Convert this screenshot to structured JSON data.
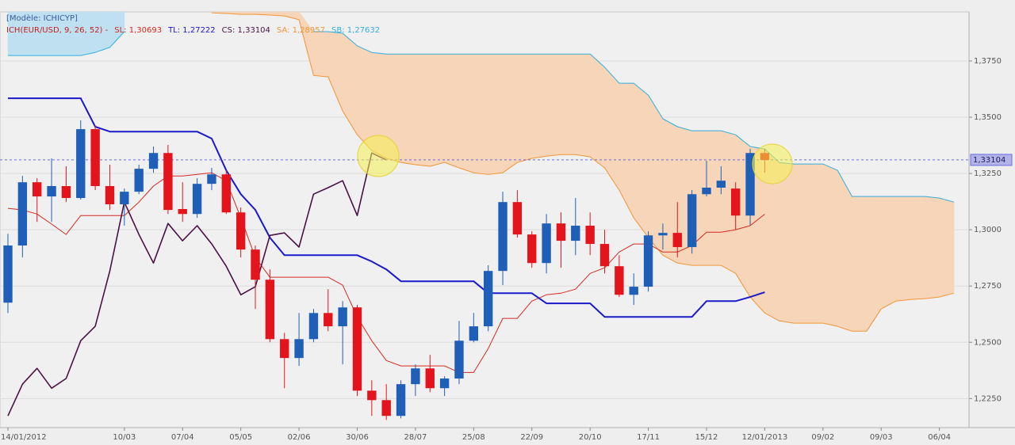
{
  "chart_data": {
    "type": "candlestick",
    "title": "[Modèle: ICHICYP]",
    "subtitle": "ICH(EUR/USD, 9, 26, 52)  -",
    "up_color": "#1f5fb8",
    "down_color": "#e3141c",
    "categories": [
      "14/01/2012",
      null,
      null,
      null,
      null,
      null,
      null,
      null,
      "10/03",
      null,
      null,
      null,
      "07/04",
      null,
      null,
      null,
      "05/05",
      null,
      null,
      null,
      "02/06",
      null,
      null,
      null,
      "30/06",
      null,
      null,
      null,
      "28/07",
      null,
      null,
      null,
      "25/08",
      null,
      null,
      null,
      "22/09",
      null,
      null,
      null,
      "20/10",
      null,
      null,
      null,
      "17/11",
      null,
      null,
      null,
      "15/12",
      null,
      null,
      null,
      "12/01/2013",
      null,
      null,
      null,
      "09/02",
      null,
      null,
      null,
      "09/03",
      null,
      null,
      null,
      "06/04",
      null
    ],
    "open": [
      1.2676,
      1.293,
      1.3211,
      1.3148,
      1.3194,
      1.3141,
      1.3447,
      1.3194,
      1.3113,
      1.3169,
      1.3271,
      1.3341,
      1.3092,
      1.307,
      1.3204,
      1.3246,
      1.3077,
      1.2912,
      1.2778,
      1.2514,
      1.243,
      1.2514,
      1.263,
      1.2571,
      1.2655,
      1.2285,
      1.2243,
      1.2173,
      1.2314,
      1.2384,
      1.2296,
      1.2339,
      1.2507,
      1.2571,
      1.2817,
      1.3123,
      1.2979,
      1.2852,
      1.3028,
      1.2951,
      1.3018,
      1.2937,
      1.2838,
      1.2711,
      1.2747,
      1.2975,
      1.2986,
      1.2923,
      1.3158,
      1.3187,
      1.3183,
      1.3063,
      1.3341,
      null,
      null,
      null,
      null,
      null,
      null,
      null,
      null,
      null,
      null,
      null,
      null,
      null
    ],
    "high": [
      1.2982,
      1.3239,
      1.3229,
      1.3317,
      1.3282,
      1.3486,
      1.3465,
      1.3289,
      1.3183,
      1.3289,
      1.337,
      1.3377,
      1.3211,
      1.3229,
      1.3275,
      1.3264,
      1.3099,
      1.293,
      1.2824,
      1.2542,
      1.263,
      1.2648,
      1.2736,
      1.2683,
      1.2666,
      1.2331,
      1.2314,
      1.2331,
      1.2402,
      1.2444,
      1.2349,
      1.2595,
      1.263,
      1.2842,
      1.3169,
      1.3176,
      1.2993,
      1.307,
      1.3077,
      1.3141,
      1.3077,
      1.3,
      1.2887,
      1.2806,
      1.2993,
      1.3028,
      1.3123,
      1.3176,
      1.3306,
      1.3282,
      1.3211,
      1.3359,
      1.3359,
      null,
      null,
      null,
      null,
      null,
      null,
      null,
      null,
      null,
      null,
      null,
      null,
      null
    ],
    "low": [
      1.263,
      1.2877,
      1.3035,
      1.3035,
      1.3123,
      1.3134,
      1.3176,
      1.3088,
      1.3018,
      1.3158,
      1.3253,
      1.307,
      1.3035,
      1.3053,
      1.3176,
      1.307,
      1.2877,
      1.2648,
      1.25,
      1.2296,
      1.2395,
      1.25,
      1.2549,
      1.2402,
      1.2261,
      1.2173,
      1.2155,
      1.2162,
      1.2261,
      1.2278,
      1.2261,
      1.2314,
      1.25,
      1.2549,
      1.2754,
      1.2965,
      1.2831,
      1.2806,
      1.2831,
      1.2887,
      1.2887,
      1.2806,
      1.2701,
      1.2666,
      1.2725,
      1.2912,
      1.2877,
      1.2894,
      1.3148,
      1.3158,
      1.3,
      1.3018,
      1.3253,
      null,
      null,
      null,
      null,
      null,
      null,
      null,
      null,
      null,
      null,
      null,
      null,
      null
    ],
    "close": [
      1.293,
      1.3211,
      1.3148,
      1.3194,
      1.3141,
      1.3447,
      1.3194,
      1.3113,
      1.3169,
      1.3271,
      1.3341,
      1.3088,
      1.307,
      1.3204,
      1.3246,
      1.3077,
      1.2912,
      1.2778,
      1.2514,
      1.243,
      1.2514,
      1.263,
      1.2571,
      1.2655,
      1.2285,
      1.2243,
      1.2173,
      1.2314,
      1.2384,
      1.2296,
      1.2339,
      1.2507,
      1.2571,
      1.2817,
      1.3123,
      1.2979,
      1.2852,
      1.3028,
      1.2951,
      1.3018,
      1.2937,
      1.2838,
      1.2711,
      1.2747,
      1.2975,
      1.2986,
      1.2923,
      1.3158,
      1.3187,
      1.3218,
      1.3063,
      1.3341,
      1.331,
      null,
      null,
      null,
      null,
      null,
      null,
      null,
      null,
      null,
      null,
      null,
      null,
      null
    ],
    "series": [
      {
        "name": "SL: 1,30693",
        "color": "#d42a20",
        "values": [
          1.3095,
          1.3088,
          1.307,
          1.3025,
          1.2979,
          1.3063,
          1.3063,
          1.3063,
          1.3063,
          1.3123,
          1.3194,
          1.3239,
          1.3239,
          1.3246,
          1.3253,
          1.3218,
          1.3053,
          1.2877,
          1.2789,
          1.2789,
          1.2789,
          1.2789,
          1.2789,
          1.2754,
          1.2613,
          1.2507,
          1.2419,
          1.2395,
          1.2395,
          1.2395,
          1.2395,
          1.2366,
          1.2366,
          1.2472,
          1.2606,
          1.2606,
          1.2683,
          1.2711,
          1.2718,
          1.2736,
          1.2806,
          1.2831,
          1.2901,
          1.2937,
          1.2937,
          1.2901,
          1.2901,
          1.293,
          1.2989,
          1.2989,
          1.3,
          1.3018,
          1.30693,
          null,
          null,
          null,
          null,
          null,
          null,
          null,
          null,
          null,
          null,
          null,
          null,
          null
        ]
      },
      {
        "name": "TL: 1,27222",
        "color": "#1a1ac8",
        "values": [
          1.3584,
          1.3584,
          1.3584,
          1.3584,
          1.3584,
          1.3584,
          1.3458,
          1.3436,
          1.3436,
          1.3436,
          1.3436,
          1.3436,
          1.3436,
          1.3436,
          1.3405,
          1.3264,
          1.3158,
          1.3088,
          1.2965,
          1.2887,
          1.2887,
          1.2887,
          1.2887,
          1.2887,
          1.2887,
          1.2859,
          1.2824,
          1.2771,
          1.2771,
          1.2771,
          1.2771,
          1.2771,
          1.2771,
          1.2718,
          1.2718,
          1.2718,
          1.2718,
          1.2673,
          1.2673,
          1.2673,
          1.2673,
          1.2613,
          1.2613,
          1.2613,
          1.2613,
          1.2613,
          1.2613,
          1.2613,
          1.2683,
          1.2683,
          1.2683,
          1.2701,
          1.27222,
          null,
          null,
          null,
          null,
          null,
          null,
          null,
          null,
          null,
          null,
          null,
          null,
          null
        ]
      },
      {
        "name": "CS: 1,33104",
        "color": "#4a1244",
        "values": [
          1.2173,
          1.2314,
          1.2384,
          1.2296,
          1.2339,
          1.2507,
          1.2571,
          1.2817,
          1.3123,
          1.2979,
          1.2852,
          1.3028,
          1.2951,
          1.3018,
          1.2937,
          1.2838,
          1.2711,
          1.2747,
          1.2975,
          1.2986,
          1.2923,
          1.3158,
          1.3187,
          1.3218,
          1.3063,
          1.3341,
          1.331,
          null,
          null,
          null,
          null,
          null,
          null,
          null,
          null,
          null,
          null,
          null,
          null,
          null,
          null,
          null,
          null,
          null,
          null,
          null,
          null,
          null,
          null,
          null,
          null,
          null,
          null,
          null,
          null,
          null,
          null,
          null,
          null,
          null,
          null,
          null,
          null,
          null,
          null,
          null
        ]
      },
      {
        "name": "SA: 1,28957",
        "color": "#f0963a",
        "values": [
          null,
          null,
          null,
          null,
          null,
          null,
          null,
          null,
          null,
          null,
          null,
          null,
          null,
          null,
          1.3964,
          1.3961,
          1.3957,
          1.3957,
          1.3954,
          1.395,
          1.3933,
          1.3686,
          1.3679,
          1.3528,
          1.3422,
          1.3352,
          1.3317,
          1.3299,
          1.3289,
          1.3282,
          1.3299,
          1.3275,
          1.3253,
          1.3246,
          1.3253,
          1.3299,
          1.3317,
          1.3327,
          1.3334,
          1.3334,
          1.3324,
          1.3275,
          1.3176,
          1.3053,
          1.2965,
          1.2887,
          1.2852,
          1.2842,
          1.2842,
          1.2842,
          1.2806,
          1.2701,
          1.263,
          1.2595,
          1.2585,
          1.2585,
          1.2585,
          1.2571,
          1.2549,
          1.2549,
          1.2648,
          1.2683,
          1.269,
          1.2694,
          1.2701,
          1.2718
        ]
      },
      {
        "name": "SB: 1,27632",
        "color": "#34aede",
        "values": [
          1.3774,
          1.3774,
          1.3774,
          1.3774,
          1.3774,
          1.3774,
          1.3788,
          1.381,
          1.388,
          null,
          null,
          null,
          null,
          null,
          null,
          null,
          null,
          null,
          null,
          null,
          null,
          1.388,
          1.388,
          1.3873,
          1.3817,
          1.3788,
          1.3781,
          1.3781,
          1.3781,
          1.3781,
          1.3781,
          1.3781,
          1.3781,
          1.3781,
          1.3781,
          1.3781,
          1.3781,
          1.3781,
          1.3781,
          1.3781,
          1.3781,
          1.3722,
          1.3651,
          1.3651,
          1.3598,
          1.3493,
          1.3458,
          1.344,
          1.344,
          1.344,
          1.3422,
          1.337,
          1.3359,
          1.3299,
          1.3292,
          1.3292,
          1.3292,
          1.3264,
          1.3148,
          1.3148,
          1.3148,
          1.3148,
          1.3148,
          1.3148,
          1.3141,
          1.3123
        ]
      }
    ],
    "cloud_colors": {
      "sa_above": "#bfe0f1",
      "sb_above": "#f6d5b8"
    },
    "price_line": {
      "value": 1.33104,
      "label": "1,33104",
      "color": "#6b6be0"
    },
    "ylim": [
      1.2121,
      1.3968
    ],
    "yticks": [
      {
        "value": 1.225,
        "label": "1,2250"
      },
      {
        "value": 1.25,
        "label": "1,2500"
      },
      {
        "value": 1.275,
        "label": "1,2750"
      },
      {
        "value": 1.3,
        "label": "1,3000"
      },
      {
        "value": 1.325,
        "label": "1,3250"
      },
      {
        "value": 1.35,
        "label": "1,3500"
      },
      {
        "value": 1.375,
        "label": "1,3750"
      }
    ],
    "grid": true
  }
}
